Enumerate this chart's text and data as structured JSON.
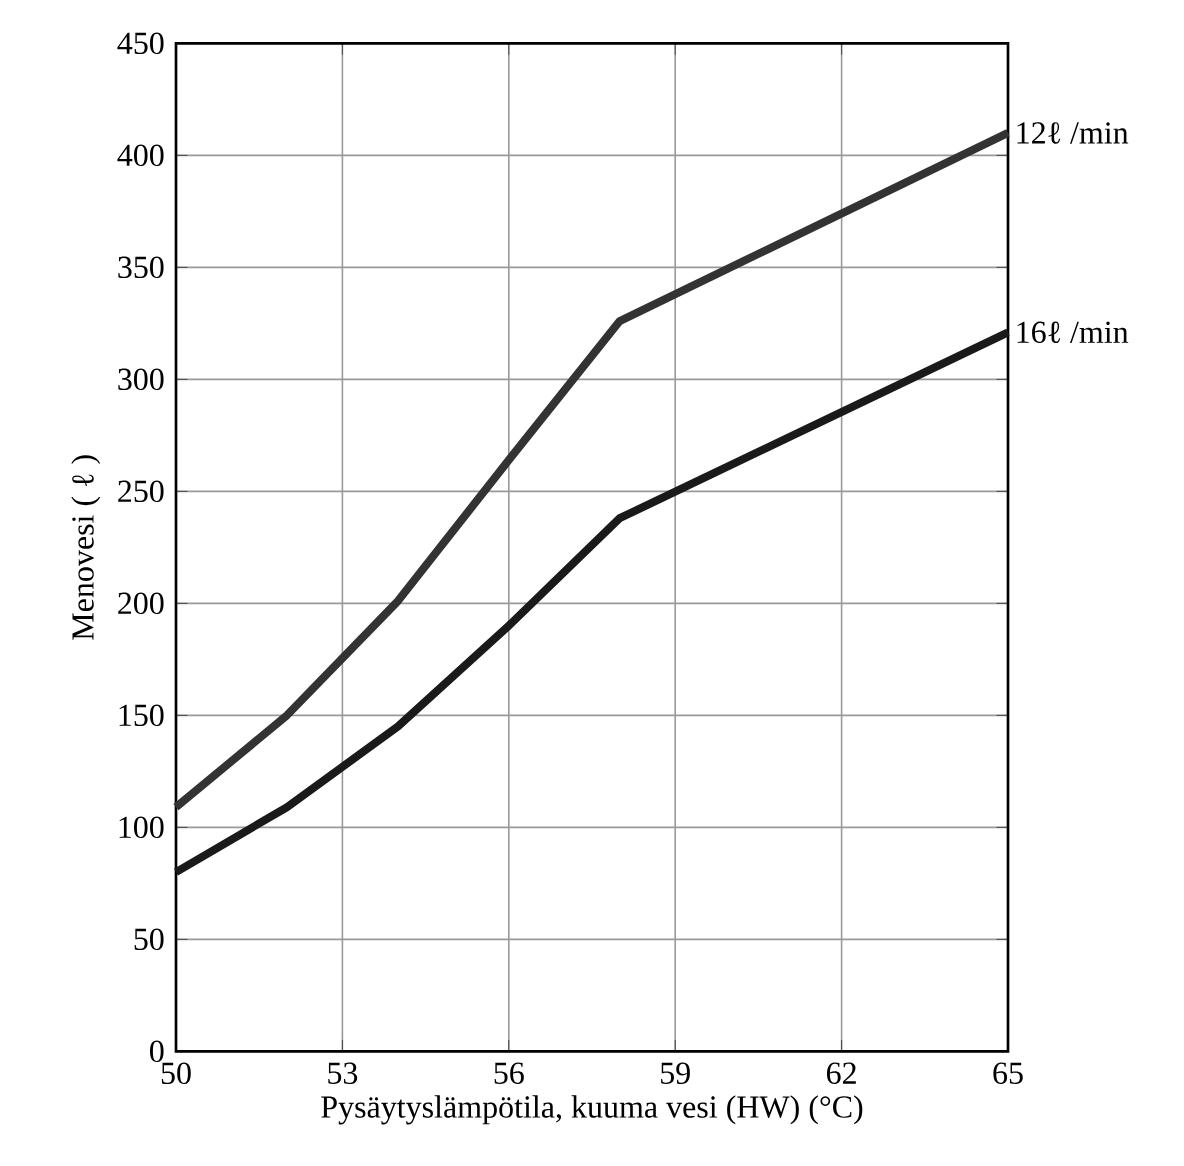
{
  "chart_data": {
    "type": "line",
    "xlabel": "Pysäytyslämpötila, kuuma vesi (HW) (°C)",
    "ylabel": "Menovesi ( ℓ )",
    "xlim": [
      50,
      65
    ],
    "ylim": [
      0,
      450
    ],
    "xticks": [
      50,
      53,
      56,
      59,
      62,
      65
    ],
    "yticks": [
      0,
      50,
      100,
      150,
      200,
      250,
      300,
      350,
      400,
      450
    ],
    "grid": true,
    "marker": "none",
    "line_style": "solid",
    "series": [
      {
        "name": "12ℓ  /min",
        "color": "#333333",
        "x": [
          50,
          52,
          54,
          56,
          58,
          65
        ],
        "values": [
          109,
          150,
          201,
          264,
          326,
          410
        ]
      },
      {
        "name": "16ℓ  /min",
        "color": "#1a1a1a",
        "x": [
          50,
          52,
          54,
          56,
          58,
          65
        ],
        "values": [
          80,
          109,
          145,
          190,
          238,
          321
        ]
      }
    ]
  }
}
